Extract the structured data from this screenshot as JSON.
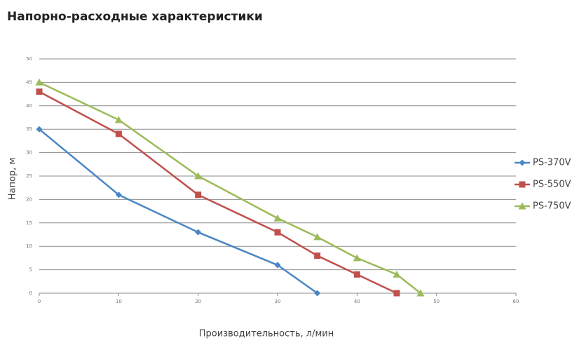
{
  "chart_data": {
    "type": "line",
    "title": "Напорно-расходные характеристики",
    "x_label": "Производительность, л/мин",
    "y_label": "Напор, м",
    "xlim": [
      0,
      60
    ],
    "xticks": [
      0,
      10,
      20,
      30,
      40,
      50,
      60
    ],
    "ylim": [
      0,
      50
    ],
    "yticks": [
      0,
      5,
      10,
      15,
      20,
      25,
      30,
      35,
      40,
      45,
      50
    ],
    "grid": true,
    "legend": "right",
    "series": [
      {
        "name": "PS-370V",
        "color": "#4a86c5",
        "marker": "diamond",
        "x": [
          0,
          10,
          20,
          30,
          35
        ],
        "values": [
          35,
          21,
          13,
          6,
          0
        ]
      },
      {
        "name": "PS-550V",
        "color": "#c0504d",
        "marker": "square",
        "x": [
          0,
          10,
          20,
          30,
          35,
          40,
          45
        ],
        "values": [
          43,
          34,
          21,
          13,
          8,
          4,
          0
        ]
      },
      {
        "name": "PS-750V",
        "color": "#9bbb59",
        "marker": "triangle",
        "x": [
          0,
          10,
          20,
          30,
          35,
          40,
          45,
          48
        ],
        "values": [
          45,
          37,
          25,
          16,
          12,
          7.5,
          4,
          0
        ]
      }
    ]
  }
}
